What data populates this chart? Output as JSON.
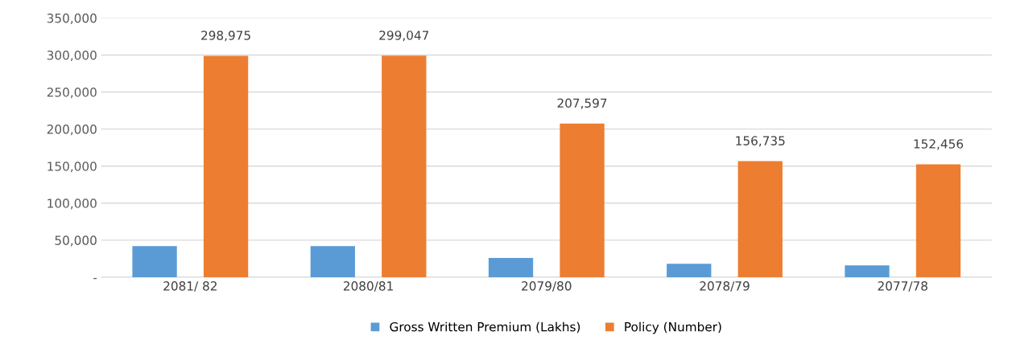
{
  "chart_data": {
    "type": "bar",
    "categories": [
      "2081/ 82",
      "2080/81",
      "2079/80",
      "2078/79",
      "2077/78"
    ],
    "series": [
      {
        "name": "Gross Written Premium (Lakhs)",
        "color": "#5b9bd5",
        "values": [
          42000,
          42000,
          26000,
          18000,
          16000
        ]
      },
      {
        "name": "Policy (Number)",
        "color": "#ed7d31",
        "values": [
          298975,
          299047,
          207597,
          156735,
          152456
        ],
        "value_labels": [
          "298,975",
          "299,047",
          "207,597",
          "156,735",
          "152,456"
        ]
      }
    ],
    "ylim": [
      0,
      350000
    ],
    "yticks": [
      {
        "value": 0,
        "label": "-"
      },
      {
        "value": 50000,
        "label": "50,000"
      },
      {
        "value": 100000,
        "label": "100,000"
      },
      {
        "value": 150000,
        "label": "150,000"
      },
      {
        "value": 200000,
        "label": "200,000"
      },
      {
        "value": 250000,
        "label": "250,000"
      },
      {
        "value": 300000,
        "label": "300,000"
      },
      {
        "value": 350000,
        "label": "350,000"
      }
    ],
    "grid": "y",
    "legend": "bottom"
  }
}
